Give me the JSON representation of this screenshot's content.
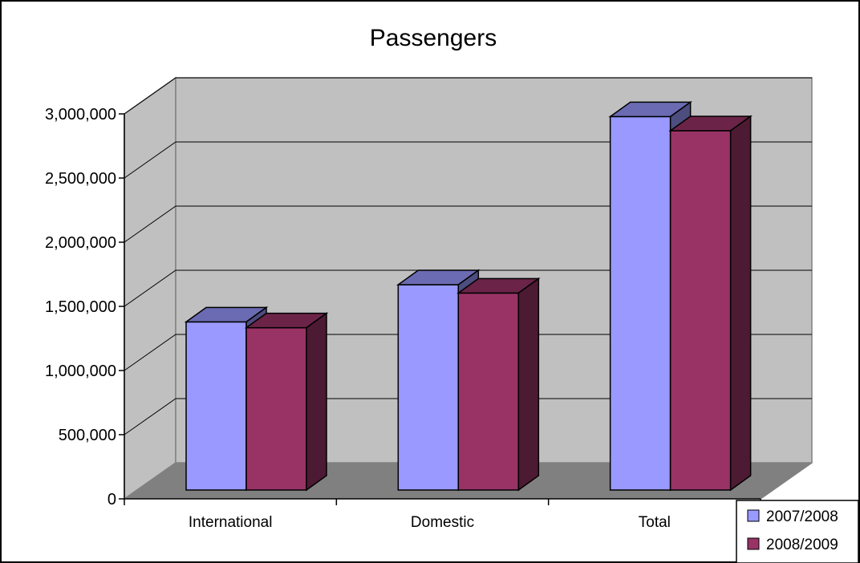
{
  "chart_data": {
    "type": "bar",
    "title": "Passengers",
    "xlabel": "",
    "ylabel": "",
    "categories": [
      "International",
      "Domestic",
      "Total"
    ],
    "series": [
      {
        "name": "2007/2008",
        "values": [
          1310000,
          1600000,
          2910000
        ],
        "color": "#9999ff"
      },
      {
        "name": "2008/2009",
        "values": [
          1265000,
          1535000,
          2800000
        ],
        "color": "#993366"
      }
    ],
    "ylim": [
      0,
      3000000
    ],
    "yticks": [
      0,
      500000,
      1000000,
      1500000,
      2000000,
      2500000,
      3000000
    ],
    "ytick_labels": [
      "0",
      "500,000",
      "1,000,000",
      "1,500,000",
      "2,000,000",
      "2,500,000",
      "3,000,000"
    ],
    "grid": true,
    "legend_position": "bottom-right",
    "style": "3d-clustered"
  }
}
